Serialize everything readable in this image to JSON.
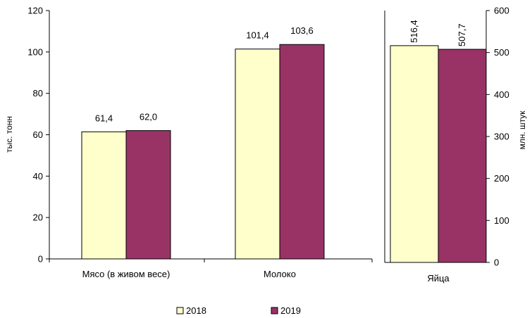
{
  "chart_data": {
    "type": "bar",
    "legend_position": "bottom",
    "grid": false,
    "series": [
      {
        "name": "2018",
        "color": "#FFFFCC"
      },
      {
        "name": "2019",
        "color": "#993366"
      }
    ],
    "left_axis": {
      "label": "тыс. тонн",
      "range": [
        0,
        120
      ],
      "ticks": [
        "0",
        "20",
        "40",
        "60",
        "80",
        "100",
        "120"
      ],
      "categories": [
        {
          "name": "Мясо (в живом весе)",
          "values": [
            61.4,
            62.0
          ],
          "labels": [
            "61,4",
            "62,0"
          ]
        },
        {
          "name": "Молоко",
          "values": [
            101.4,
            103.6
          ],
          "labels": [
            "101,4",
            "103,6"
          ]
        }
      ]
    },
    "right_axis": {
      "label": "млн. штук",
      "range": [
        0,
        600
      ],
      "ticks": [
        "0",
        "100",
        "200",
        "300",
        "400",
        "500",
        "600"
      ],
      "categories": [
        {
          "name": "Яйца",
          "values": [
            516.4,
            507.7
          ],
          "labels": [
            "516,4",
            "507,7"
          ]
        }
      ]
    }
  }
}
